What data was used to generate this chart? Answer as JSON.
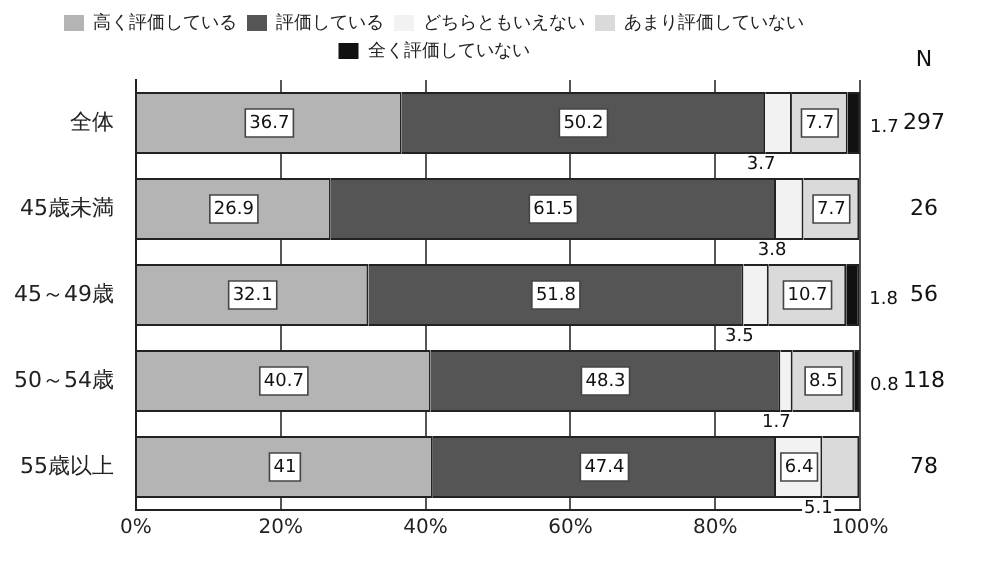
{
  "chart_data": {
    "type": "bar",
    "orientation": "horizontal",
    "stacked": true,
    "categories": [
      "全体",
      "45歳未満",
      "45～49歳",
      "50～54歳",
      "55歳以上"
    ],
    "series": [
      {
        "name": "高く評価している",
        "color": "#b4b4b4",
        "values": [
          36.7,
          26.9,
          32.1,
          40.7,
          41
        ],
        "value_labels": [
          "36.7",
          "26.9",
          "32.1",
          "40.7",
          "41"
        ]
      },
      {
        "name": "評価している",
        "color": "#555555",
        "values": [
          50.2,
          61.5,
          51.8,
          48.3,
          47.4
        ],
        "value_labels": [
          "50.2",
          "61.5",
          "51.8",
          "48.3",
          "47.4"
        ]
      },
      {
        "name": "どちらともいえない",
        "color": "#f2f2f2",
        "values": [
          3.7,
          3.8,
          3.5,
          1.7,
          6.4
        ],
        "value_labels": [
          "3.7",
          "3.8",
          "3.5",
          "1.7",
          "6.4"
        ]
      },
      {
        "name": "あまり評価していない",
        "color": "#dadada",
        "values": [
          7.7,
          7.7,
          10.7,
          8.5,
          5.1
        ],
        "value_labels": [
          "7.7",
          "7.7",
          "10.7",
          "8.5",
          "5.1"
        ]
      },
      {
        "name": "全く評価していない",
        "color": "#111111",
        "values": [
          1.7,
          null,
          1.8,
          0.8,
          null
        ],
        "value_labels": [
          "1.7",
          null,
          "1.8",
          "0.8",
          null
        ]
      }
    ],
    "xlim": [
      0,
      100
    ],
    "xticks": [
      {
        "value": 0,
        "label": "0%"
      },
      {
        "value": 20,
        "label": "20%"
      },
      {
        "value": 40,
        "label": "40%"
      },
      {
        "value": 60,
        "label": "60%"
      },
      {
        "value": 80,
        "label": "80%"
      },
      {
        "value": 100,
        "label": "100%"
      }
    ],
    "grid": "x",
    "legend": "top",
    "annotations": [
      "N",
      "297",
      "26",
      "56",
      "118",
      "78"
    ]
  }
}
